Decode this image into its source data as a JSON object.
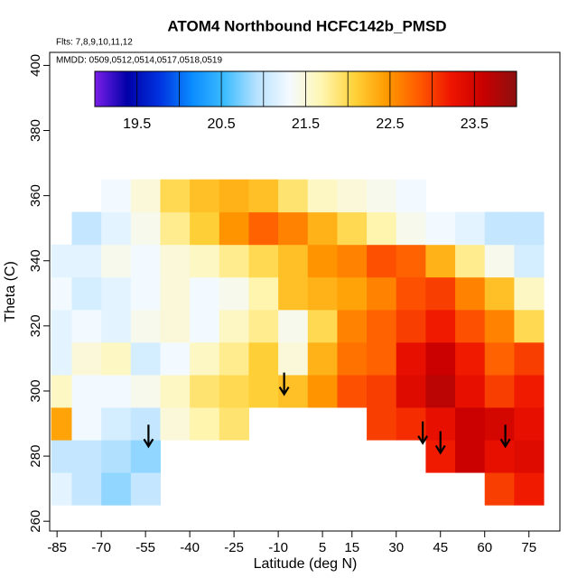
{
  "chart_data": {
    "type": "heatmap",
    "title": "ATOM4 Northbound HCFC142b_PMSD",
    "subtitle": "Flts: 7,8,9,10,11,12",
    "annotation": "MMDD: 0509,0512,0514,0517,0518,0519",
    "xlabel": "Latitude (deg N)",
    "ylabel": "Theta (C)",
    "xlim": [
      -87.5,
      85.5
    ],
    "ylim": [
      257,
      404
    ],
    "xticks": [
      -85,
      -70,
      -55,
      -40,
      -25,
      -10,
      5,
      15,
      30,
      45,
      60,
      75
    ],
    "yticks": [
      260,
      280,
      300,
      320,
      340,
      360,
      380,
      400
    ],
    "x_edges": [
      -87,
      -80,
      -70,
      -60,
      -50,
      -40,
      -30,
      -20,
      -10,
      0,
      10,
      20,
      30,
      40,
      50,
      60,
      70,
      80
    ],
    "y_edges": [
      265,
      275,
      285,
      295,
      305,
      315,
      325,
      335,
      345,
      355,
      365
    ],
    "z": [
      [
        21.2,
        21.0,
        20.8,
        21.0,
        null,
        null,
        null,
        null,
        null,
        null,
        null,
        null,
        null,
        null,
        null,
        23.0,
        23.2
      ],
      [
        21.0,
        21.0,
        20.9,
        20.8,
        null,
        null,
        null,
        null,
        null,
        null,
        null,
        null,
        null,
        23.2,
        23.6,
        23.3,
        23.4
      ],
      [
        22.4,
        21.3,
        21.1,
        21.0,
        21.5,
        21.7,
        21.9,
        null,
        null,
        null,
        null,
        23.0,
        23.1,
        23.3,
        23.6,
        23.5,
        23.3
      ],
      [
        21.6,
        21.3,
        21.3,
        21.4,
        21.6,
        21.9,
        22.0,
        22.1,
        22.2,
        22.5,
        22.9,
        23.0,
        23.4,
        23.7,
        23.3,
        23.0,
        23.2
      ],
      [
        21.2,
        21.5,
        21.6,
        21.1,
        21.3,
        21.6,
        21.8,
        22.1,
        21.5,
        22.3,
        22.7,
        22.8,
        23.3,
        23.6,
        23.2,
        22.8,
        23.0
      ],
      [
        21.2,
        21.3,
        21.2,
        21.4,
        21.5,
        21.3,
        21.6,
        21.8,
        21.4,
        22.0,
        22.6,
        22.8,
        23.0,
        23.2,
        22.9,
        22.6,
        22.0
      ],
      [
        21.3,
        21.1,
        21.2,
        21.3,
        21.5,
        21.3,
        21.4,
        21.7,
        22.2,
        22.3,
        22.4,
        22.6,
        22.9,
        23.0,
        22.6,
        22.2,
        21.6
      ],
      [
        21.2,
        21.2,
        21.4,
        21.3,
        21.5,
        21.6,
        21.8,
        22.0,
        22.2,
        22.5,
        22.6,
        22.9,
        22.8,
        22.3,
        21.8,
        21.4,
        21.1
      ],
      [
        null,
        21.0,
        21.2,
        21.4,
        21.8,
        22.1,
        22.5,
        22.8,
        22.6,
        22.3,
        22.0,
        21.7,
        21.4,
        21.3,
        21.2,
        21.0,
        21.0
      ],
      [
        null,
        null,
        21.3,
        21.5,
        22.0,
        22.2,
        22.3,
        22.2,
        21.9,
        21.6,
        21.5,
        21.4,
        21.3,
        null,
        null,
        null,
        null
      ]
    ],
    "colorbar_lim": [
      19,
      24
    ],
    "colorbar_ticks": [
      19.5,
      20.5,
      21.5,
      22.5,
      23.5
    ],
    "colorbar_step": 0.5,
    "colormap": [
      "#7a1fe8",
      "#0000a8",
      "#0033e0",
      "#0a8cff",
      "#3cbcff",
      "#b8e2ff",
      "#f4faff",
      "#fff6b0",
      "#ffd23a",
      "#ff9a00",
      "#ff5a00",
      "#ee1400",
      "#c80000",
      "#8c1010"
    ],
    "arrows": [
      {
        "lat": -54,
        "theta": 283
      },
      {
        "lat": -8,
        "theta": 299
      },
      {
        "lat": 39,
        "theta": 284
      },
      {
        "lat": 45,
        "theta": 281
      },
      {
        "lat": 67,
        "theta": 283
      }
    ]
  }
}
